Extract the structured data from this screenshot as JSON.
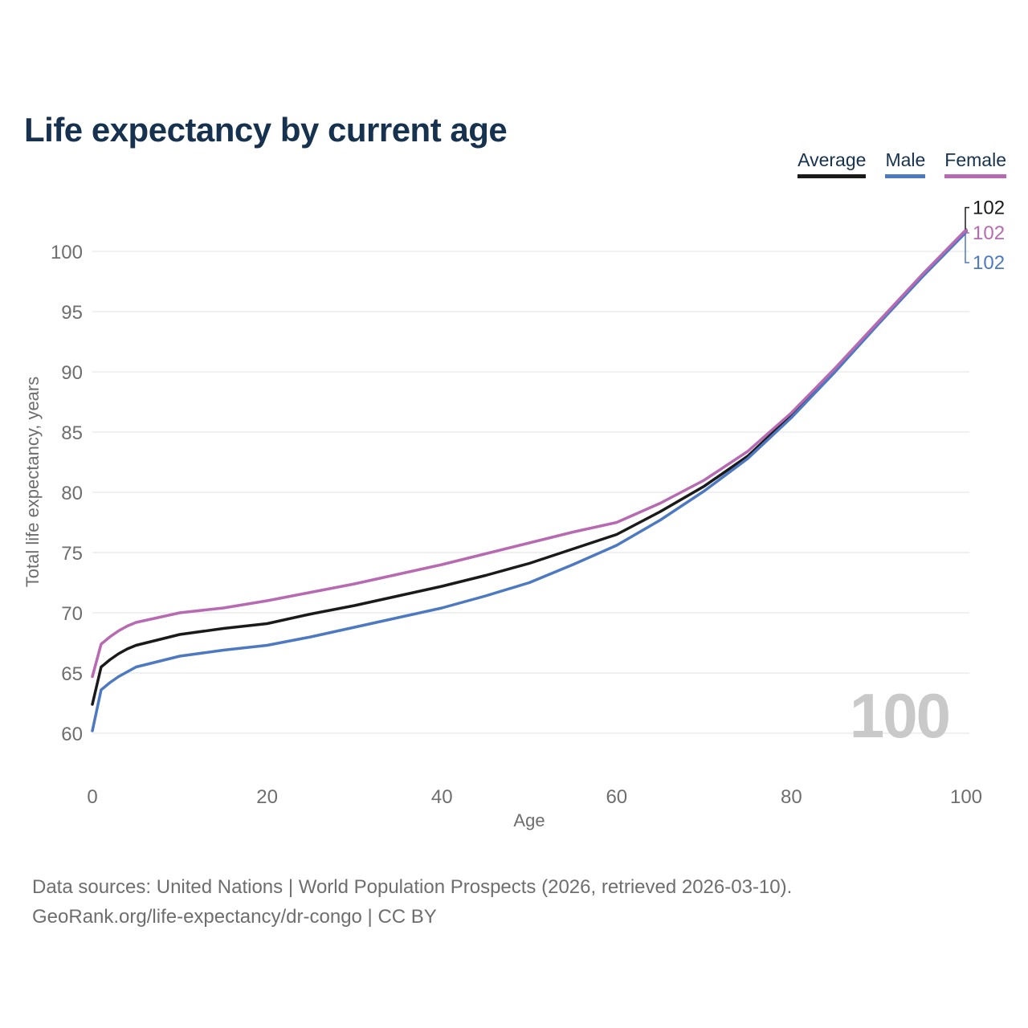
{
  "title": "Life expectancy by current age",
  "legend": [
    {
      "label": "Average",
      "color": "#1a1a1a"
    },
    {
      "label": "Male",
      "color": "#4d79c2"
    },
    {
      "label": "Female",
      "color": "#b76ab2"
    }
  ],
  "watermark": "100",
  "footer": {
    "line1": "Data sources: United Nations | World Population Prospects (2026, retrieved 2026-03-10).",
    "line2": "GeoRank.org/life-expectancy/dr-congo | CC BY"
  },
  "chart_data": {
    "type": "line",
    "title": "Life expectancy by current age",
    "xlabel": "Age",
    "ylabel": "Total life expectancy, years",
    "xlim": [
      0,
      100
    ],
    "ylim": [
      60,
      102.5
    ],
    "xticks": [
      0,
      20,
      40,
      60,
      80,
      100
    ],
    "yticks": [
      60,
      65,
      70,
      75,
      80,
      85,
      90,
      95,
      100
    ],
    "grid": "horizontal-only",
    "grid_color": "#e8e8e8",
    "legend_position": "top-right",
    "age_counter": "100",
    "series": [
      {
        "name": "Average",
        "color": "#1a1a1a",
        "end_label": "102",
        "points": [
          [
            0,
            62.4
          ],
          [
            1,
            65.5
          ],
          [
            2,
            66.1
          ],
          [
            3,
            66.6
          ],
          [
            4,
            67.0
          ],
          [
            5,
            67.3
          ],
          [
            10,
            68.2
          ],
          [
            15,
            68.7
          ],
          [
            20,
            69.1
          ],
          [
            25,
            69.9
          ],
          [
            30,
            70.6
          ],
          [
            35,
            71.4
          ],
          [
            40,
            72.2
          ],
          [
            45,
            73.1
          ],
          [
            50,
            74.1
          ],
          [
            55,
            75.3
          ],
          [
            60,
            76.5
          ],
          [
            65,
            78.4
          ],
          [
            70,
            80.5
          ],
          [
            75,
            83.0
          ],
          [
            80,
            86.4
          ],
          [
            85,
            90.1
          ],
          [
            90,
            94.1
          ],
          [
            95,
            98.0
          ],
          [
            100,
            101.7
          ]
        ]
      },
      {
        "name": "Male",
        "color": "#4d79c2",
        "end_label": "102",
        "points": [
          [
            0,
            60.2
          ],
          [
            1,
            63.6
          ],
          [
            2,
            64.2
          ],
          [
            3,
            64.7
          ],
          [
            4,
            65.1
          ],
          [
            5,
            65.5
          ],
          [
            10,
            66.4
          ],
          [
            15,
            66.9
          ],
          [
            20,
            67.3
          ],
          [
            25,
            68.0
          ],
          [
            30,
            68.8
          ],
          [
            35,
            69.6
          ],
          [
            40,
            70.4
          ],
          [
            45,
            71.4
          ],
          [
            50,
            72.5
          ],
          [
            55,
            74.0
          ],
          [
            60,
            75.6
          ],
          [
            65,
            77.7
          ],
          [
            70,
            80.1
          ],
          [
            75,
            82.8
          ],
          [
            80,
            86.2
          ],
          [
            85,
            90.0
          ],
          [
            90,
            94.0
          ],
          [
            95,
            97.9
          ],
          [
            100,
            101.6
          ]
        ]
      },
      {
        "name": "Female",
        "color": "#b76ab2",
        "end_label": "102",
        "points": [
          [
            0,
            64.7
          ],
          [
            1,
            67.4
          ],
          [
            2,
            68.0
          ],
          [
            3,
            68.5
          ],
          [
            4,
            68.9
          ],
          [
            5,
            69.2
          ],
          [
            10,
            70.0
          ],
          [
            15,
            70.4
          ],
          [
            20,
            71.0
          ],
          [
            25,
            71.7
          ],
          [
            30,
            72.4
          ],
          [
            35,
            73.2
          ],
          [
            40,
            74.0
          ],
          [
            45,
            74.9
          ],
          [
            50,
            75.8
          ],
          [
            55,
            76.7
          ],
          [
            60,
            77.5
          ],
          [
            65,
            79.1
          ],
          [
            70,
            81.0
          ],
          [
            75,
            83.4
          ],
          [
            80,
            86.6
          ],
          [
            85,
            90.3
          ],
          [
            90,
            94.2
          ],
          [
            95,
            98.1
          ],
          [
            100,
            101.8
          ]
        ]
      }
    ]
  }
}
